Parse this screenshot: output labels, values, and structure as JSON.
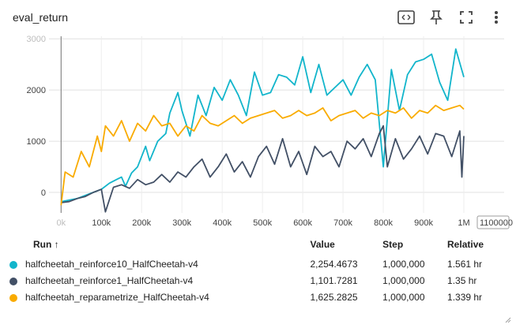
{
  "card": {
    "title": "eval_return"
  },
  "toolbar": {
    "icons": [
      "fit-domain-icon",
      "pin-icon",
      "fullscreen-icon",
      "more-vert-icon"
    ]
  },
  "chart_data": {
    "type": "line",
    "title": "eval_return",
    "xlabel": "",
    "ylabel": "",
    "xlim": [
      -30000,
      1100000
    ],
    "ylim": [
      -400,
      3050
    ],
    "x_ticks": [
      "0k",
      "100k",
      "200k",
      "300k",
      "400k",
      "500k",
      "600k",
      "700k",
      "800k",
      "900k",
      "1M",
      "1100000"
    ],
    "y_ticks": [
      "0",
      "1000",
      "2000",
      "3000"
    ],
    "grid": true,
    "series": [
      {
        "name": "halfcheetah_reinforce10_HalfCheetah-v4",
        "color": "#12b5cb",
        "values": [
          [
            0,
            -180
          ],
          [
            20000,
            -150
          ],
          [
            40000,
            -120
          ],
          [
            60000,
            -60
          ],
          [
            80000,
            0
          ],
          [
            100000,
            60
          ],
          [
            120000,
            180
          ],
          [
            140000,
            260
          ],
          [
            150000,
            300
          ],
          [
            160000,
            120
          ],
          [
            175000,
            380
          ],
          [
            190000,
            500
          ],
          [
            210000,
            900
          ],
          [
            220000,
            620
          ],
          [
            240000,
            1000
          ],
          [
            260000,
            1150
          ],
          [
            270000,
            1550
          ],
          [
            290000,
            1950
          ],
          [
            300000,
            1600
          ],
          [
            320000,
            1100
          ],
          [
            340000,
            1900
          ],
          [
            360000,
            1500
          ],
          [
            380000,
            2050
          ],
          [
            400000,
            1800
          ],
          [
            420000,
            2200
          ],
          [
            440000,
            1900
          ],
          [
            460000,
            1500
          ],
          [
            480000,
            2350
          ],
          [
            500000,
            1900
          ],
          [
            520000,
            1950
          ],
          [
            540000,
            2300
          ],
          [
            560000,
            2250
          ],
          [
            580000,
            2100
          ],
          [
            600000,
            2650
          ],
          [
            620000,
            1950
          ],
          [
            640000,
            2500
          ],
          [
            660000,
            1900
          ],
          [
            680000,
            2050
          ],
          [
            700000,
            2200
          ],
          [
            720000,
            1900
          ],
          [
            740000,
            2250
          ],
          [
            760000,
            2500
          ],
          [
            780000,
            2200
          ],
          [
            800000,
            500
          ],
          [
            820000,
            2400
          ],
          [
            840000,
            1600
          ],
          [
            860000,
            2300
          ],
          [
            880000,
            2550
          ],
          [
            900000,
            2600
          ],
          [
            920000,
            2700
          ],
          [
            940000,
            2150
          ],
          [
            960000,
            1800
          ],
          [
            980000,
            2800
          ],
          [
            1000000,
            2254
          ]
        ]
      },
      {
        "name": "halfcheetah_reinforce1_HalfCheetah-v4",
        "color": "#425066",
        "values": [
          [
            0,
            -200
          ],
          [
            20000,
            -180
          ],
          [
            40000,
            -120
          ],
          [
            60000,
            -80
          ],
          [
            80000,
            0
          ],
          [
            100000,
            60
          ],
          [
            110000,
            -380
          ],
          [
            130000,
            100
          ],
          [
            150000,
            150
          ],
          [
            170000,
            80
          ],
          [
            190000,
            250
          ],
          [
            210000,
            150
          ],
          [
            230000,
            200
          ],
          [
            250000,
            350
          ],
          [
            270000,
            200
          ],
          [
            290000,
            400
          ],
          [
            310000,
            300
          ],
          [
            330000,
            500
          ],
          [
            350000,
            650
          ],
          [
            370000,
            300
          ],
          [
            390000,
            500
          ],
          [
            410000,
            750
          ],
          [
            430000,
            400
          ],
          [
            450000,
            600
          ],
          [
            470000,
            300
          ],
          [
            490000,
            700
          ],
          [
            510000,
            900
          ],
          [
            530000,
            550
          ],
          [
            550000,
            1050
          ],
          [
            570000,
            500
          ],
          [
            590000,
            800
          ],
          [
            610000,
            350
          ],
          [
            630000,
            900
          ],
          [
            650000,
            700
          ],
          [
            670000,
            800
          ],
          [
            690000,
            500
          ],
          [
            710000,
            1000
          ],
          [
            730000,
            850
          ],
          [
            750000,
            1050
          ],
          [
            770000,
            700
          ],
          [
            790000,
            1150
          ],
          [
            800000,
            1300
          ],
          [
            810000,
            500
          ],
          [
            830000,
            1050
          ],
          [
            850000,
            650
          ],
          [
            870000,
            850
          ],
          [
            890000,
            1100
          ],
          [
            910000,
            750
          ],
          [
            930000,
            1150
          ],
          [
            950000,
            1100
          ],
          [
            970000,
            700
          ],
          [
            990000,
            1200
          ],
          [
            995000,
            300
          ],
          [
            1000000,
            1101
          ]
        ]
      },
      {
        "name": "halfcheetah_reparametrize_HalfCheetah-v4",
        "color": "#f9ab00",
        "values": [
          [
            0,
            -250
          ],
          [
            10000,
            400
          ],
          [
            30000,
            300
          ],
          [
            50000,
            800
          ],
          [
            70000,
            500
          ],
          [
            90000,
            1100
          ],
          [
            100000,
            800
          ],
          [
            110000,
            1300
          ],
          [
            130000,
            1100
          ],
          [
            150000,
            1400
          ],
          [
            170000,
            1000
          ],
          [
            190000,
            1350
          ],
          [
            210000,
            1200
          ],
          [
            230000,
            1500
          ],
          [
            250000,
            1300
          ],
          [
            270000,
            1350
          ],
          [
            290000,
            1100
          ],
          [
            310000,
            1300
          ],
          [
            330000,
            1200
          ],
          [
            350000,
            1500
          ],
          [
            370000,
            1350
          ],
          [
            390000,
            1300
          ],
          [
            410000,
            1400
          ],
          [
            430000,
            1500
          ],
          [
            450000,
            1350
          ],
          [
            470000,
            1450
          ],
          [
            490000,
            1500
          ],
          [
            510000,
            1550
          ],
          [
            530000,
            1600
          ],
          [
            550000,
            1450
          ],
          [
            570000,
            1500
          ],
          [
            590000,
            1600
          ],
          [
            610000,
            1500
          ],
          [
            630000,
            1550
          ],
          [
            650000,
            1650
          ],
          [
            670000,
            1400
          ],
          [
            690000,
            1500
          ],
          [
            710000,
            1550
          ],
          [
            730000,
            1600
          ],
          [
            750000,
            1450
          ],
          [
            770000,
            1550
          ],
          [
            790000,
            1500
          ],
          [
            810000,
            1600
          ],
          [
            830000,
            1550
          ],
          [
            850000,
            1650
          ],
          [
            870000,
            1450
          ],
          [
            890000,
            1600
          ],
          [
            910000,
            1550
          ],
          [
            930000,
            1700
          ],
          [
            950000,
            1600
          ],
          [
            970000,
            1650
          ],
          [
            990000,
            1700
          ],
          [
            1000000,
            1625
          ]
        ]
      }
    ]
  },
  "table": {
    "headers": {
      "run": "Run ↑",
      "value": "Value",
      "step": "Step",
      "relative": "Relative"
    },
    "rows": [
      {
        "run": "halfcheetah_reinforce10_HalfCheetah-v4",
        "value": "2,254.4673",
        "step": "1,000,000",
        "relative": "1.561 hr",
        "color": "#12b5cb"
      },
      {
        "run": "halfcheetah_reinforce1_HalfCheetah-v4",
        "value": "1,101.7281",
        "step": "1,000,000",
        "relative": "1.35 hr",
        "color": "#425066"
      },
      {
        "run": "halfcheetah_reparametrize_HalfCheetah-v4",
        "value": "1,625.2825",
        "step": "1,000,000",
        "relative": "1.339 hr",
        "color": "#f9ab00"
      }
    ]
  }
}
